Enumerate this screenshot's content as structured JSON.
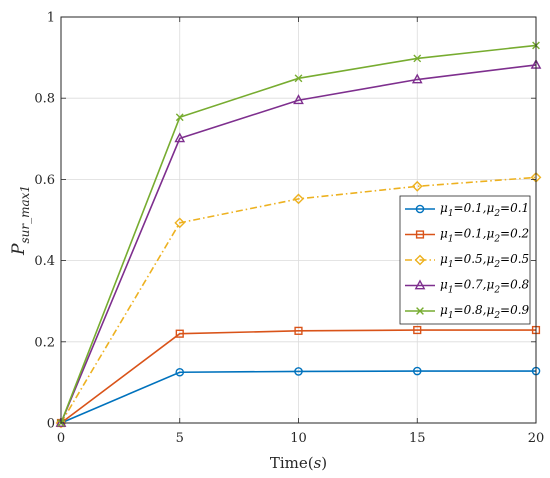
{
  "chart_data": {
    "type": "line",
    "title": "",
    "xlabel": "Time(",
    "xlabel_unit": "s",
    "xlabel_close": ")",
    "ylabel": "P",
    "ylabel_sub": "sur_max1",
    "x": [
      0,
      5,
      10,
      15,
      20
    ],
    "xlim": [
      0,
      20
    ],
    "ylim": [
      0,
      1
    ],
    "x_ticks": [
      "0",
      "5",
      "10",
      "15",
      "20"
    ],
    "y_ticks": [
      "0",
      "0.2",
      "0.4",
      "0.6",
      "0.8",
      "1"
    ],
    "grid": true,
    "legend_position": "center-right",
    "series": [
      {
        "name": "μ1=0.1,μ2=0.1",
        "legend_parts": {
          "m": "μ",
          "s1": "1",
          "v1": "=0.1,",
          "s2": "2",
          "v2": "=0.1"
        },
        "values": [
          0,
          0.125,
          0.127,
          0.128,
          0.128
        ],
        "color": "#0072bd",
        "marker": "circle",
        "dash": "solid"
      },
      {
        "name": "μ1=0.1,μ2=0.2",
        "legend_parts": {
          "m": "μ",
          "s1": "1",
          "v1": "=0.1,",
          "s2": "2",
          "v2": "=0.2"
        },
        "values": [
          0,
          0.22,
          0.227,
          0.229,
          0.229
        ],
        "color": "#d95319",
        "marker": "square",
        "dash": "solid"
      },
      {
        "name": "μ1=0.5,μ2=0.5",
        "legend_parts": {
          "m": "μ",
          "s1": "1",
          "v1": "=0.5,",
          "s2": "2",
          "v2": "=0.5"
        },
        "values": [
          0,
          0.493,
          0.552,
          0.583,
          0.605
        ],
        "color": "#edb120",
        "marker": "diamond",
        "dash": "dashdot"
      },
      {
        "name": "μ1=0.7,μ2=0.8",
        "legend_parts": {
          "m": "μ",
          "s1": "1",
          "v1": "=0.7,",
          "s2": "2",
          "v2": "=0.8"
        },
        "values": [
          0,
          0.701,
          0.795,
          0.846,
          0.882
        ],
        "color": "#7e2f8e",
        "marker": "triangle",
        "dash": "solid"
      },
      {
        "name": "μ1=0.8,μ2=0.9",
        "legend_parts": {
          "m": "μ",
          "s1": "1",
          "v1": "=0.8,",
          "s2": "2",
          "v2": "=0.9"
        },
        "values": [
          0,
          0.753,
          0.849,
          0.898,
          0.93
        ],
        "color": "#77ac30",
        "marker": "x",
        "dash": "solid"
      }
    ]
  }
}
